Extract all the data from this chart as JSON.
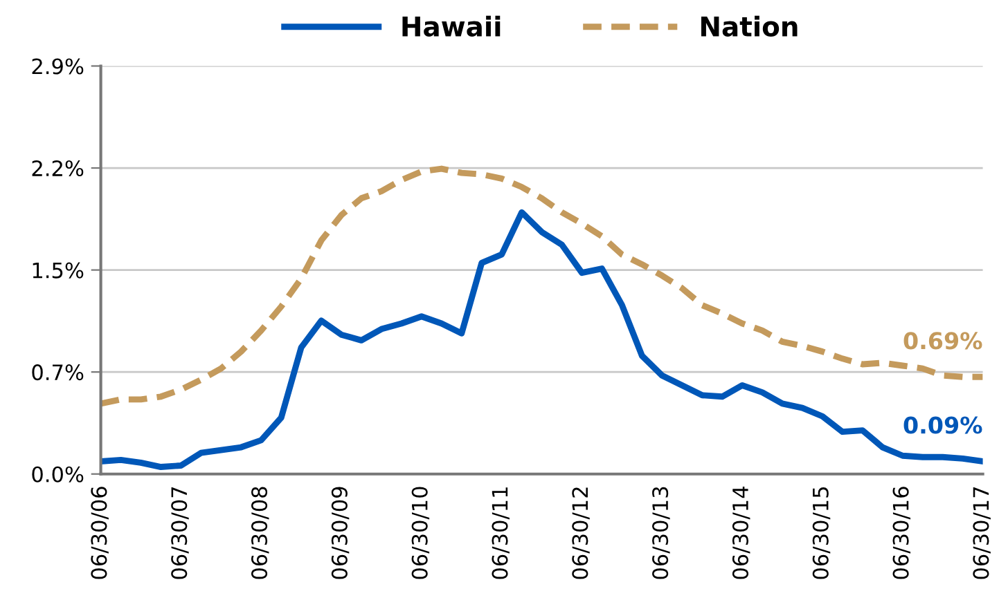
{
  "chart_data": {
    "type": "line",
    "categories": [
      "06/30/06",
      null,
      null,
      null,
      "06/30/07",
      null,
      null,
      null,
      "06/30/08",
      null,
      null,
      null,
      "06/30/09",
      null,
      null,
      null,
      "06/30/10",
      null,
      null,
      null,
      "06/30/11",
      null,
      null,
      null,
      "06/30/12",
      null,
      null,
      null,
      "06/30/13",
      null,
      null,
      null,
      "06/30/14",
      null,
      null,
      null,
      "06/30/15",
      null,
      null,
      null,
      "06/30/16",
      null,
      null,
      null,
      "06/30/17"
    ],
    "series": [
      {
        "name": "Hawaii",
        "color": "#0057b8",
        "line_style": "solid",
        "values": [
          0.09,
          0.1,
          0.08,
          0.05,
          0.06,
          0.15,
          0.17,
          0.19,
          0.24,
          0.4,
          0.9,
          1.09,
          0.99,
          0.95,
          1.03,
          1.07,
          1.12,
          1.07,
          1.0,
          1.5,
          1.56,
          1.86,
          1.72,
          1.63,
          1.43,
          1.46,
          1.2,
          0.84,
          0.7,
          0.63,
          0.56,
          0.55,
          0.63,
          0.58,
          0.5,
          0.47,
          0.41,
          0.3,
          0.31,
          0.19,
          0.13,
          0.12,
          0.12,
          0.11,
          0.09
        ]
      },
      {
        "name": "Nation",
        "color": "#c49a5c",
        "line_style": "dashed",
        "values": [
          0.5,
          0.53,
          0.53,
          0.55,
          0.6,
          0.67,
          0.75,
          0.87,
          1.02,
          1.19,
          1.39,
          1.66,
          1.84,
          1.96,
          2.01,
          2.09,
          2.15,
          2.17,
          2.14,
          2.13,
          2.1,
          2.04,
          1.96,
          1.86,
          1.78,
          1.69,
          1.56,
          1.49,
          1.41,
          1.32,
          1.2,
          1.14,
          1.07,
          1.02,
          0.94,
          0.91,
          0.87,
          0.82,
          0.78,
          0.79,
          0.77,
          0.75,
          0.7,
          0.69,
          0.69
        ]
      }
    ],
    "annotations": [
      {
        "text": "0.69%",
        "x": "06/30/17",
        "y": 0.69
      },
      {
        "text": "0.09%",
        "x": "06/30/17",
        "y": 0.09
      }
    ],
    "ylim": [
      0,
      2.9
    ],
    "yticks": [
      {
        "value": 0,
        "label": "0.0%"
      },
      {
        "value": 0.725,
        "label": "0.7%"
      },
      {
        "value": 1.45,
        "label": "1.5%"
      },
      {
        "value": 2.175,
        "label": "2.2%"
      },
      {
        "value": 2.9,
        "label": "2.9%"
      }
    ],
    "grid": "y",
    "legend": "top",
    "marker": "none"
  }
}
